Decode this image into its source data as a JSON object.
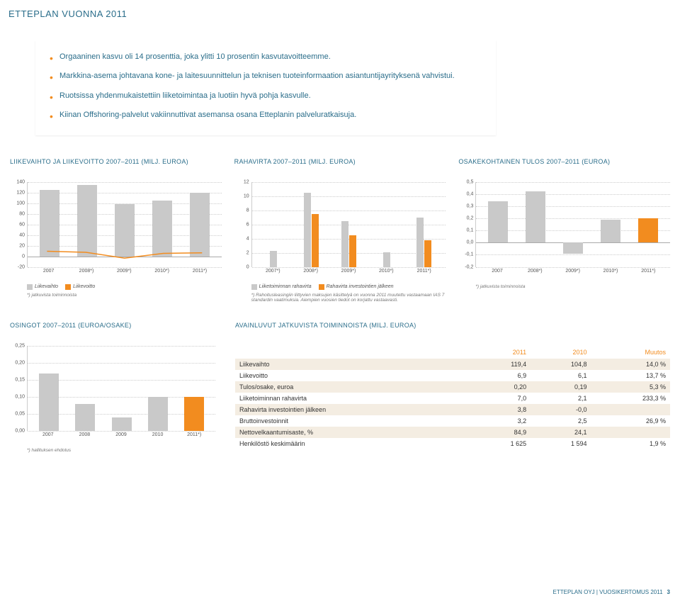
{
  "page_title": "ETTEPLAN VUONNA 2011",
  "bullets": [
    "Orgaaninen kasvu oli 14 prosenttia, joka ylitti 10 prosentin kasvutavoitteemme.",
    "Markkina-asema johtavana kone- ja laitesuunnittelun ja teknisen tuoteinformaation asiantuntijayrityksenä vahvistui.",
    "Ruotsissa yhdenmukaistettiin liiketoimintaa ja luotiin hyvä pohja kasvulle.",
    "Kiinan Offshoring-palvelut vakiinnuttivat asemansa osana Etteplanin palveluratkaisuja."
  ],
  "chart1": {
    "title": "LIIKEVAIHTO JA LIIKEVOITTO 2007–2011\n(MILJ. EUROA)",
    "ymin": -20,
    "ymax": 140,
    "ytick_step": 20,
    "categories": [
      "2007",
      "2008*)",
      "2009*)",
      "2010*)",
      "2011*)"
    ],
    "revenue": [
      125,
      134,
      98,
      105,
      119
    ],
    "profit_line": [
      10,
      8,
      -3,
      6,
      7
    ],
    "colors": {
      "bar": "#c9c9c9",
      "line": "#f28c1f"
    },
    "legend": [
      "Liikevaihto",
      "Liikevoitto"
    ],
    "note": "*) jatkuvista toiminnoista"
  },
  "chart2": {
    "title": "RAHAVIRTA 2007–2011\n(MILJ. EUROA)",
    "ymin": 0,
    "ymax": 12,
    "ytick_step": 2,
    "categories": [
      "2007*)",
      "2008*)",
      "2009*)",
      "2010*)",
      "2011*)"
    ],
    "series1": [
      2.3,
      10.5,
      6.5,
      2.1,
      7.0
    ],
    "series2": [
      null,
      7.5,
      4.5,
      null,
      3.8
    ],
    "colors": {
      "s1": "#c9c9c9",
      "s2": "#f28c1f"
    },
    "legend": [
      "Liiketoiminnan rahavirta",
      "Rahavirta investointien jälkeen"
    ],
    "note": "*) Rahoitusleasingiin liittyvien maksujen käsittelyä on vuonna 2011 muutettu vastaamaan IAS 7 standardin vaatimuksia. Aiempien vuosien tiedot on korjattu vastaavasti."
  },
  "chart3": {
    "title": "OSAKEKOHTAINEN TULOS 2007–2011\n(EUROA)",
    "ymin": -0.2,
    "ymax": 0.5,
    "ytick_step": 0.1,
    "categories": [
      "2007",
      "2008*)",
      "2009*)",
      "2010*)",
      "2011*)"
    ],
    "values": [
      0.34,
      0.42,
      -0.09,
      0.19,
      0.2
    ],
    "color": "#c9c9c9",
    "highlight_color": "#f28c1f",
    "highlight_index": 4,
    "note": "*) jatkuvista toiminnoista"
  },
  "chart4": {
    "title": "OSINGOT 2007–2011\n(EUROA/OSAKE)",
    "ymin": 0,
    "ymax": 0.25,
    "ytick_step": 0.05,
    "categories": [
      "2007",
      "2008",
      "2009",
      "2010",
      "2011*)"
    ],
    "values": [
      0.17,
      0.08,
      0.04,
      0.1,
      0.1
    ],
    "color": "#c9c9c9",
    "highlight_color": "#f28c1f",
    "highlight_index": 4,
    "note": "*) hallituksen ehdotus"
  },
  "kpi": {
    "title": "AVAINLUVUT JATKUVISTA TOIMINNOISTA\n(MILJ. EUROA)",
    "columns": [
      "",
      "2011",
      "2010",
      "Muutos"
    ],
    "rows": [
      [
        "Liikevaihto",
        "119,4",
        "104,8",
        "14,0 %"
      ],
      [
        "Liikevoitto",
        "6,9",
        "6,1",
        "13,7 %"
      ],
      [
        "Tulos/osake, euroa",
        "0,20",
        "0,19",
        "5,3 %"
      ],
      [
        "Liiketoiminnan rahavirta",
        "7,0",
        "2,1",
        "233,3 %"
      ],
      [
        "Rahavirta investointien jälkeen",
        "3,8",
        "-0,0",
        ""
      ],
      [
        "Bruttoinvestoinnit",
        "3,2",
        "2,5",
        "26,9 %"
      ],
      [
        "Nettovelkaantumisaste, %",
        "84,9",
        "24,1",
        ""
      ],
      [
        "Henkilöstö keskimäärin",
        "1 625",
        "1 594",
        "1,9 %"
      ]
    ]
  },
  "footer": {
    "text": "ETTEPLAN OYJ | VUOSIKERTOMUS 2011",
    "page": "3"
  }
}
